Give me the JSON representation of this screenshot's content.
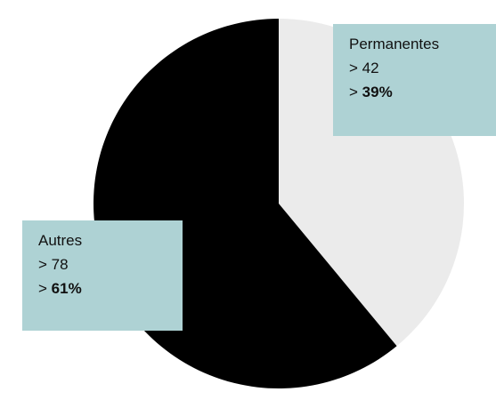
{
  "chart_data": {
    "type": "pie",
    "categories": [
      "Permanentes",
      "Autres"
    ],
    "values": [
      39,
      61
    ],
    "value_labels": [
      "39%",
      "61%"
    ],
    "counts": [
      42,
      78
    ],
    "label_prefix": ">",
    "colors": [
      "#ebebeb",
      "#000000"
    ],
    "label_box_color": "#aed2d4"
  }
}
